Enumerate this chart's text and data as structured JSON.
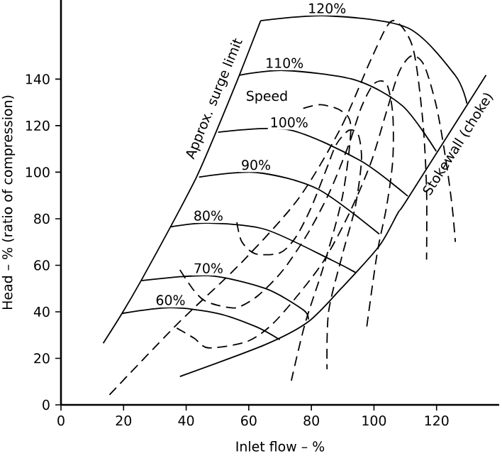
{
  "chart_data": {
    "type": "line",
    "xlabel": "Inlet flow – %",
    "ylabel": "Head – % (ratio of compression)",
    "xlim": [
      0,
      140
    ],
    "ylim": [
      0,
      174
    ],
    "xticks": [
      0,
      20,
      40,
      60,
      80,
      100,
      120
    ],
    "yticks": [
      0,
      20,
      40,
      60,
      80,
      100,
      120,
      140
    ],
    "marker": "none",
    "annotations": [
      "Speed"
    ],
    "series": [
      {
        "name": "60%",
        "color": "#000000",
        "line_style": "solid",
        "x": [
          19.5,
          35,
          50.1,
          62.3,
          69.9
        ],
        "values": [
          39.3,
          41.8,
          39.3,
          33.6,
          28
        ]
      },
      {
        "name": "70%",
        "color": "#000000",
        "line_style": "solid",
        "x": [
          25.6,
          47.1,
          65.3,
          77.4,
          79
        ],
        "values": [
          53.4,
          55.5,
          50,
          40.8,
          36.7
        ]
      },
      {
        "name": "80%",
        "color": "#000000",
        "line_style": "solid",
        "x": [
          35,
          47.1,
          65.3,
          86.5,
          94.1
        ],
        "values": [
          76.5,
          78.1,
          75.4,
          62.2,
          56.9
        ]
      },
      {
        "name": "90%",
        "color": "#000000",
        "line_style": "solid",
        "x": [
          44.1,
          62.3,
          82,
          101.7
        ],
        "values": [
          97.9,
          99.9,
          92.8,
          73.4
        ]
      },
      {
        "name": "100%",
        "color": "#000000",
        "line_style": "solid",
        "x": [
          50.2,
          72.9,
          95.6,
          110.8
        ],
        "values": [
          117.2,
          118.2,
          105,
          89.7
        ]
      },
      {
        "name": "110%",
        "color": "#000000",
        "line_style": "solid",
        "x": [
          57,
          71.4,
          94,
          109.2,
          119.9
        ],
        "values": [
          141.7,
          143.7,
          139.6,
          128.4,
          109
        ]
      },
      {
        "name": "120%",
        "color": "#000000",
        "line_style": "solid",
        "x": [
          63.8,
          85,
          110.8,
          125.9,
          129.7
        ],
        "values": [
          165.1,
          167.2,
          162,
          141.7,
          129.5
        ]
      },
      {
        "name": "Approx. surge limit",
        "color": "#000000",
        "line_style": "solid",
        "x": [
          13.5,
          19.5,
          25.6,
          35,
          43.3,
          49.4,
          57,
          63.8
        ],
        "values": [
          26.5,
          39.3,
          53.4,
          76.5,
          97.9,
          116.8,
          141.7,
          165.1
        ]
      },
      {
        "name": "Stokewall (choke)",
        "color": "#000000",
        "line_style": "solid",
        "x": [
          38,
          65.3,
          79,
          89.5,
          101.7,
          107.7,
          110.8,
          135.8
        ],
        "values": [
          12.2,
          25.9,
          35.7,
          50,
          68.3,
          82.6,
          88.7,
          141.7
        ]
      },
      {
        "color": "#000000",
        "line_style": "dashed",
        "x": [
          15.5,
          37.3,
          57.7,
          75.9,
          89.5,
          99.5,
          105.9,
          112.3,
          115.5,
          116.8,
          116.8
        ],
        "values": [
          4.3,
          34.9,
          61.2,
          88.7,
          119.3,
          149.8,
          165.1,
          154.1,
          123.5,
          93,
          62.4
        ]
      },
      {
        "color": "#000000",
        "line_style": "dashed",
        "x": [
          37,
          42.6,
          47.1,
          59.2,
          67,
          75,
          84,
          92,
          99,
          104,
          108,
          112,
          116,
          120,
          123,
          125,
          126
        ],
        "values": [
          33,
          28.6,
          24.5,
          27.1,
          34,
          46,
          62,
          82,
          104,
          126,
          143,
          150,
          146,
          128,
          105,
          85,
          70
        ]
      },
      {
        "color": "#000000",
        "line_style": "dashed",
        "x": [
          38,
          42,
          45.6,
          50.1,
          56.2,
          63,
          71,
          79,
          86,
          92,
          96,
          100,
          104,
          106,
          106,
          104,
          101,
          97.7
        ],
        "values": [
          58,
          50,
          45,
          42.8,
          41.8,
          47,
          58,
          74,
          92,
          112,
          128,
          138,
          138,
          125,
          105,
          85,
          65,
          33.6
        ]
      },
      {
        "color": "#000000",
        "line_style": "dashed",
        "x": [
          56.2,
          57.7,
          62,
          69.9,
          75,
          80,
          85,
          88,
          92,
          95,
          96,
          94,
          90,
          85.5,
          85
        ],
        "values": [
          78.5,
          70.3,
          65,
          65.3,
          72,
          85,
          102,
          112,
          118,
          116,
          105,
          85,
          65,
          40,
          15.3
        ]
      },
      {
        "color": "#000000",
        "line_style": "dashed",
        "x": [
          77.4,
          83,
          89.5,
          92.6,
          90,
          84,
          78,
          73.6
        ],
        "values": [
          127.4,
          129,
          126.4,
          119.3,
          90,
          60,
          35,
          10.4
        ]
      }
    ]
  }
}
